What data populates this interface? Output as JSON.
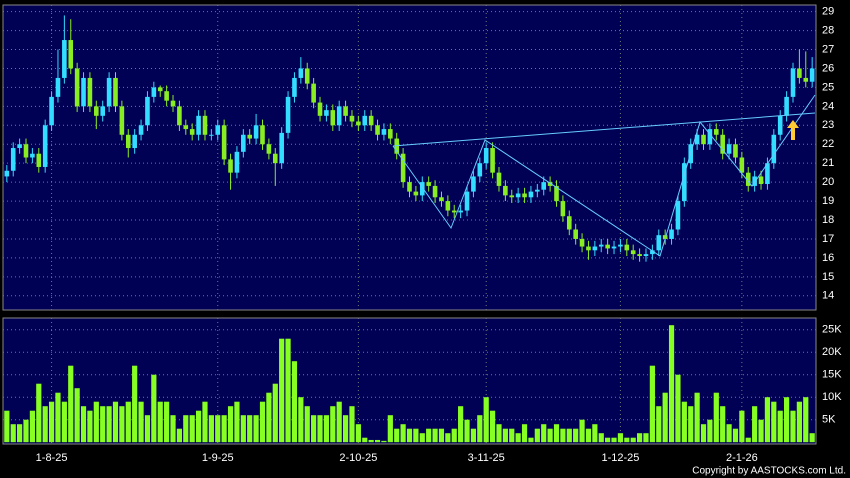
{
  "chart_data": [
    {
      "type": "candlestick",
      "open": [
        20.3,
        20.6,
        21.8,
        22.0,
        21.3,
        21.5,
        20.8,
        23,
        24.5,
        25.5,
        27.5,
        26,
        24,
        25.5,
        24,
        23.5,
        24,
        25.5,
        24,
        22.5,
        21.8,
        22.5,
        23,
        24.5,
        25,
        24.8,
        24.3,
        24,
        23,
        22.8,
        22.5,
        23.5,
        22.5,
        22.5,
        23,
        21.2,
        20.5,
        21.6,
        22.5,
        22.3,
        23,
        22,
        21.5,
        21,
        22.6,
        24.5,
        25.5,
        26,
        25.2,
        24.2,
        23.5,
        23.8,
        23,
        24,
        23.5,
        23.2,
        23,
        23.5,
        23,
        22.5,
        22.8,
        22.3,
        21.5,
        20,
        19.5,
        19.3,
        20,
        19.8,
        19.2,
        19,
        18.5,
        18.4,
        18.5,
        19.5,
        20.3,
        21,
        21.8,
        20.5,
        19.8,
        19.3,
        19.2,
        19.4,
        19.2,
        19.5,
        19.6,
        20,
        19.8,
        19,
        18.2,
        17.5,
        17,
        16.6,
        16.4,
        16.6,
        16.7,
        16.5,
        16.6,
        16.7,
        16.4,
        16.2,
        16.1,
        16.2,
        16.4,
        17.2,
        17,
        17.5,
        19,
        21,
        22,
        22.5,
        22,
        22.8,
        22.5,
        21.5,
        22,
        21.3,
        20.5,
        19.8,
        20.3,
        19.9,
        21,
        22.5,
        23.5,
        24.5,
        26,
        25.5,
        25.3
      ],
      "high": [
        20.9,
        22.1,
        22.3,
        22.3,
        21.8,
        21.8,
        23.3,
        24.8,
        27.0,
        28.8,
        28.6,
        26.3,
        25.8,
        25.8,
        24.3,
        24.3,
        25.8,
        25.8,
        24.3,
        22.8,
        22.8,
        23.3,
        24.8,
        25.3,
        25.1,
        25.1,
        24.6,
        24.3,
        23.3,
        23.1,
        23.8,
        23.8,
        22.8,
        23.3,
        23.3,
        21.5,
        21.9,
        22.8,
        22.8,
        23.6,
        23.3,
        22.3,
        21.8,
        22.9,
        24.8,
        25.8,
        26.6,
        26.3,
        25.5,
        24.5,
        24.1,
        24.1,
        24.3,
        24.3,
        23.8,
        23.5,
        23.8,
        23.8,
        23.3,
        23.1,
        23.1,
        22.6,
        21.8,
        20.3,
        19.8,
        20.3,
        20.3,
        20.1,
        19.5,
        19.3,
        18.8,
        18.8,
        19.8,
        20.6,
        21.3,
        22.1,
        22.1,
        20.8,
        20.1,
        19.6,
        19.7,
        19.7,
        19.8,
        19.9,
        20.3,
        20.3,
        20.1,
        19.3,
        18.5,
        17.8,
        17.3,
        16.9,
        16.9,
        17.0,
        17.0,
        16.9,
        17.0,
        17.0,
        16.7,
        16.5,
        16.5,
        16.7,
        17.5,
        17.5,
        17.8,
        19.3,
        21.3,
        22.3,
        22.8,
        22.8,
        23.1,
        23.1,
        22.8,
        22.3,
        22.3,
        21.6,
        20.8,
        20.6,
        20.6,
        21.3,
        22.8,
        23.8,
        24.8,
        26.3,
        27.0,
        26.9,
        26.6
      ],
      "low": [
        20.0,
        20.3,
        21.5,
        21.0,
        21.0,
        20.5,
        20.5,
        22.7,
        24.2,
        25.2,
        25.7,
        23.7,
        23.7,
        23.7,
        22.8,
        23.2,
        23.7,
        23.7,
        22.2,
        21.3,
        21.5,
        22.2,
        22.7,
        24.2,
        24.5,
        24.0,
        23.7,
        22.7,
        22.5,
        22.2,
        22.2,
        22.2,
        22.2,
        22.2,
        20.9,
        19.6,
        20.2,
        21.3,
        22.0,
        22.0,
        21.7,
        21.2,
        19.8,
        20.7,
        22.3,
        24.2,
        25.2,
        24.9,
        23.9,
        23.2,
        23.2,
        22.7,
        22.7,
        23.2,
        22.9,
        22.7,
        22.7,
        22.7,
        22.2,
        22.2,
        22.0,
        21.2,
        19.7,
        19.2,
        19.0,
        19.0,
        19.5,
        18.9,
        18.7,
        18.2,
        18.1,
        18.1,
        18.2,
        19.2,
        20.0,
        20.7,
        20.2,
        19.5,
        19.0,
        18.9,
        18.9,
        18.9,
        18.9,
        19.2,
        19.3,
        19.5,
        18.7,
        17.9,
        17.2,
        16.7,
        16.3,
        15.9,
        16.1,
        16.3,
        16.2,
        16.2,
        16.3,
        16.1,
        15.9,
        15.8,
        15.8,
        15.9,
        16.1,
        16.7,
        16.7,
        17.2,
        18.7,
        20.7,
        21.7,
        21.7,
        21.7,
        22.2,
        21.2,
        21.2,
        21.0,
        20.2,
        19.5,
        19.5,
        19.6,
        19.6,
        20.7,
        22.2,
        23.2,
        24.2,
        25.2,
        25.0,
        25.0
      ],
      "close": [
        20.6,
        21.8,
        22.0,
        21.3,
        21.5,
        20.8,
        23,
        24.5,
        25.5,
        27.5,
        26,
        24,
        25.5,
        24,
        23.5,
        24,
        25.5,
        24,
        22.5,
        21.8,
        22.5,
        23,
        24.5,
        25,
        24.8,
        24.3,
        24,
        23,
        22.8,
        22.5,
        23.5,
        22.5,
        22.5,
        23,
        21.2,
        20.5,
        21.6,
        22.5,
        22.3,
        23,
        22,
        21.5,
        21,
        22.6,
        24.5,
        25.5,
        26,
        25.2,
        24.2,
        23.5,
        23.8,
        23,
        24,
        23.5,
        23.2,
        23,
        23.5,
        23,
        22.5,
        22.8,
        22.3,
        21.5,
        20,
        19.5,
        19.3,
        20,
        19.8,
        19.2,
        19,
        18.5,
        18.4,
        18.5,
        19.5,
        20.3,
        21,
        21.8,
        20.5,
        19.8,
        19.3,
        19.2,
        19.4,
        19.2,
        19.5,
        19.6,
        20,
        19.8,
        19,
        18.2,
        17.5,
        17,
        16.6,
        16.4,
        16.6,
        16.7,
        16.5,
        16.6,
        16.7,
        16.4,
        16.2,
        16.1,
        16.2,
        16.4,
        17.2,
        17,
        17.5,
        19,
        21,
        22,
        22.5,
        22,
        22.8,
        22.5,
        21.5,
        22,
        21.3,
        20.5,
        19.8,
        20.3,
        19.9,
        21,
        22.5,
        23.5,
        24.5,
        26,
        25.5,
        25.3,
        26
      ],
      "up_color": "#33ddff",
      "down_color": "#88ee22",
      "xlim": [
        -0.6,
        126.6
      ],
      "ylim": [
        13.25,
        29.35
      ],
      "yticks": [
        14,
        15,
        16,
        17,
        18,
        19,
        20,
        21,
        22,
        23,
        24,
        25,
        26,
        27,
        28,
        29
      ],
      "grid": true
    },
    {
      "type": "bar",
      "values": [
        7,
        4,
        4,
        5,
        7,
        13,
        8,
        9,
        11,
        9,
        17,
        12,
        8,
        7,
        9,
        8,
        8,
        9,
        8,
        9,
        17,
        9,
        6,
        15,
        9,
        9,
        6,
        3,
        6,
        6,
        7,
        9,
        6,
        6,
        6,
        8,
        9,
        6,
        6,
        6,
        9,
        11,
        13,
        23,
        23,
        18,
        10,
        8,
        6,
        6,
        6,
        8,
        9,
        6,
        8,
        4,
        1,
        0.5,
        0.5,
        0.3,
        6,
        3,
        4,
        3,
        3,
        2,
        3,
        3,
        3,
        2,
        3,
        8,
        5,
        3,
        6,
        10,
        7,
        4,
        3,
        3,
        2,
        4,
        1,
        3,
        4,
        3,
        4,
        3,
        3,
        3,
        5,
        3,
        4,
        2,
        1,
        1,
        2,
        1,
        1,
        2,
        2,
        17,
        8,
        11,
        26,
        15,
        9,
        8,
        11,
        4,
        5,
        11,
        8,
        4,
        3,
        7,
        1,
        8,
        5,
        10,
        9,
        7,
        10,
        7,
        9,
        10,
        2
      ],
      "color": "#88ff22",
      "xlim": [
        -0.6,
        126.6
      ],
      "ylim": [
        -0.4,
        27.6
      ],
      "xticks": [
        {
          "value": 7,
          "label": "1-8-25"
        },
        {
          "value": 33,
          "label": "1-9-25"
        },
        {
          "value": 55,
          "label": "2-10-25"
        },
        {
          "value": 75,
          "label": "3-11-25"
        },
        {
          "value": 96,
          "label": "1-12-25"
        },
        {
          "value": 115,
          "label": "2-1-26"
        }
      ],
      "yticks": [
        {
          "value": 5,
          "label": "5K"
        },
        {
          "value": 10,
          "label": "10K"
        },
        {
          "value": 15,
          "label": "15K"
        },
        {
          "value": 20,
          "label": "20K"
        },
        {
          "value": 25,
          "label": "25K"
        }
      ],
      "grid": true
    }
  ],
  "footer": "Copyright by AASTOCKS.com Ltd."
}
